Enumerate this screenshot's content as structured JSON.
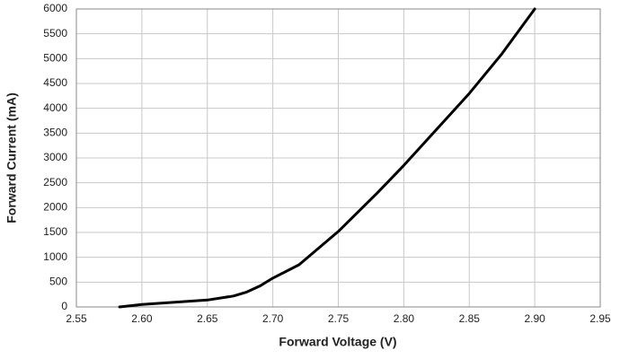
{
  "chart_data": {
    "type": "line",
    "x_label": "Forward Voltage (V)",
    "y_label": "Forward Current (mA)",
    "series": [
      {
        "color": "#000000",
        "x": [
          2.583,
          2.6,
          2.65,
          2.67,
          2.68,
          2.69,
          2.7,
          2.72,
          2.75,
          2.78,
          2.8,
          2.85,
          2.875,
          2.9
        ],
        "values": [
          0,
          50,
          140,
          220,
          300,
          420,
          580,
          850,
          1520,
          2300,
          2850,
          4300,
          5100,
          6000
        ]
      }
    ],
    "xlim": [
      2.55,
      2.95
    ],
    "xticks": [
      2.55,
      {
        "value": 2.6,
        "label": "2.60"
      },
      2.65,
      {
        "value": 2.7,
        "label": "2.70"
      },
      2.75,
      {
        "value": 2.8,
        "label": "2.80"
      },
      2.85,
      {
        "value": 2.9,
        "label": "2.90"
      },
      2.95
    ],
    "ylim": [
      0,
      6000
    ],
    "yticks": [
      0,
      500,
      1000,
      1500,
      2000,
      2500,
      3000,
      3500,
      4000,
      4500,
      5000,
      5500,
      6000
    ],
    "grid": true
  }
}
